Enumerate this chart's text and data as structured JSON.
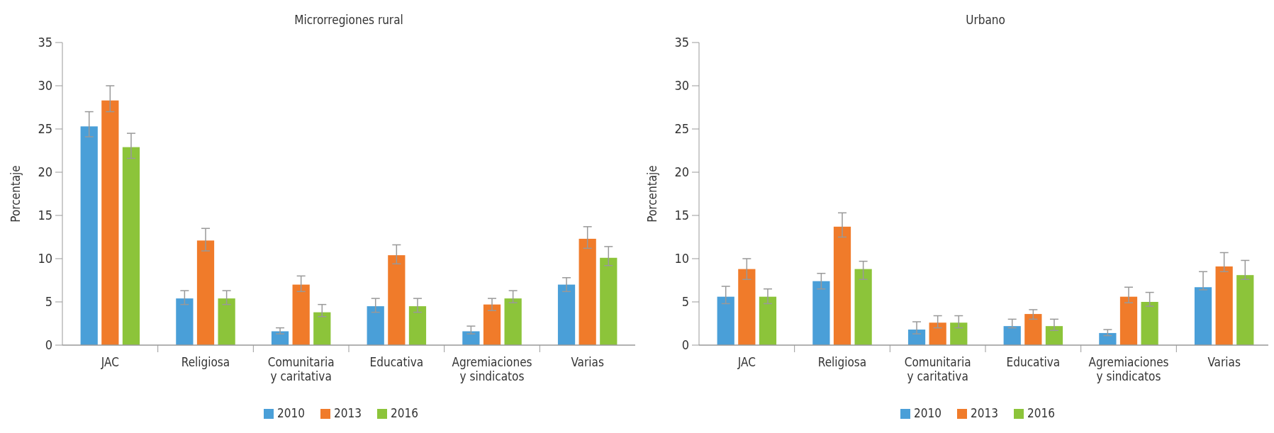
{
  "chart_data": [
    {
      "type": "bar",
      "title": "Microrregiones rural",
      "ylabel": "Porcentaje",
      "categories": [
        "JAC",
        "Religiosa",
        "Comunitaria y caritativa",
        "Educativa",
        "Agremiaciones y sindicatos",
        "Varias"
      ],
      "ylim": [
        0,
        35
      ],
      "yticks": [
        0,
        5,
        10,
        15,
        20,
        25,
        30,
        35
      ],
      "grid": false,
      "legend": "bottom",
      "series": [
        {
          "name": "2010",
          "color": "#4a9fd8",
          "values": [
            25.3,
            5.4,
            1.6,
            4.5,
            1.6,
            7.0
          ],
          "errors": [
            [
              24.1,
              27.0
            ],
            [
              4.7,
              6.3
            ],
            [
              1.3,
              2.0
            ],
            [
              3.8,
              5.4
            ],
            [
              1.3,
              2.2
            ],
            [
              6.2,
              7.8
            ]
          ]
        },
        {
          "name": "2013",
          "color": "#f07b2a",
          "values": [
            28.3,
            12.1,
            7.0,
            10.4,
            4.7,
            12.3
          ],
          "errors": [
            [
              27.0,
              30.0
            ],
            [
              10.9,
              13.5
            ],
            [
              6.2,
              8.0
            ],
            [
              9.4,
              11.6
            ],
            [
              4.0,
              5.4
            ],
            [
              11.2,
              13.7
            ]
          ]
        },
        {
          "name": "2016",
          "color": "#8cc43a",
          "values": [
            22.9,
            5.4,
            3.8,
            4.5,
            5.4,
            10.1
          ],
          "errors": [
            [
              21.6,
              24.5
            ],
            [
              4.7,
              6.3
            ],
            [
              3.3,
              4.7
            ],
            [
              3.8,
              5.4
            ],
            [
              4.9,
              6.3
            ],
            [
              9.2,
              11.4
            ]
          ]
        }
      ]
    },
    {
      "type": "bar",
      "title": "Urbano",
      "ylabel": "Porcentaje",
      "categories": [
        "JAC",
        "Religiosa",
        "Comunitaria y caritativa",
        "Educativa",
        "Agremiaciones y sindicatos",
        "Varias"
      ],
      "ylim": [
        0,
        35
      ],
      "yticks": [
        0,
        5,
        10,
        15,
        20,
        25,
        30,
        35
      ],
      "grid": false,
      "legend": "bottom",
      "series": [
        {
          "name": "2010",
          "color": "#4a9fd8",
          "values": [
            5.6,
            7.4,
            1.8,
            2.2,
            1.4,
            6.7
          ],
          "errors": [
            [
              4.8,
              6.8
            ],
            [
              6.5,
              8.3
            ],
            [
              1.3,
              2.7
            ],
            [
              2.0,
              3.0
            ],
            [
              1.1,
              1.8
            ],
            [
              6.4,
              8.5
            ]
          ]
        },
        {
          "name": "2013",
          "color": "#f07b2a",
          "values": [
            8.8,
            13.7,
            2.6,
            3.6,
            5.6,
            9.1
          ],
          "errors": [
            [
              7.6,
              10.0
            ],
            [
              12.5,
              15.3
            ],
            [
              2.0,
              3.4
            ],
            [
              3.0,
              4.1
            ],
            [
              4.9,
              6.7
            ],
            [
              8.5,
              10.7
            ]
          ]
        },
        {
          "name": "2016",
          "color": "#8cc43a",
          "values": [
            5.6,
            8.8,
            2.6,
            2.2,
            5.0,
            8.1
          ],
          "errors": [
            [
              4.8,
              6.5
            ],
            [
              7.6,
              9.7
            ],
            [
              2.0,
              3.4
            ],
            [
              1.7,
              3.0
            ],
            [
              4.5,
              6.1
            ],
            [
              7.6,
              9.8
            ]
          ]
        }
      ]
    }
  ]
}
